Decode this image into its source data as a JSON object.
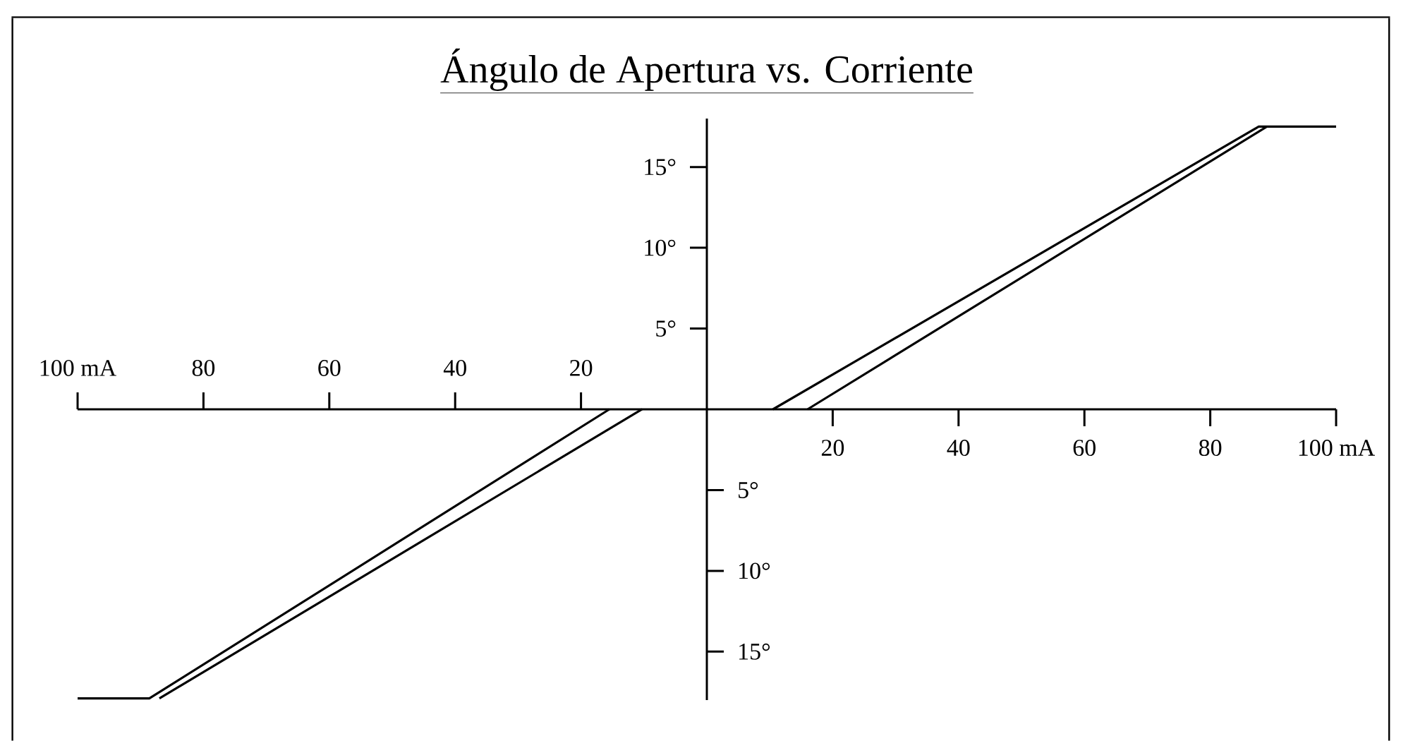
{
  "chart_data": {
    "type": "line",
    "title": "Ángulo de Apertura vs. Corriente",
    "xlim": [
      -100,
      100
    ],
    "ylim": [
      -18,
      18
    ],
    "xticks": [
      20,
      40,
      60,
      80,
      {
        "value": 100,
        "label": "100 mA"
      }
    ],
    "x2lim": [
      -100,
      100
    ],
    "x2ticks": [
      {
        "value": -100,
        "label": "100 mA"
      },
      {
        "value": -80,
        "label": "80"
      },
      {
        "value": -60,
        "label": "60"
      },
      {
        "value": -40,
        "label": "40"
      },
      {
        "value": -20,
        "label": "20"
      }
    ],
    "yticks": [
      {
        "value": 5,
        "label": "5°"
      },
      {
        "value": 10,
        "label": "10°"
      },
      {
        "value": 15,
        "label": "15°"
      }
    ],
    "y2lim": [
      -18,
      18
    ],
    "y2ticks": [
      {
        "value": -15,
        "label": "15°"
      },
      {
        "value": -10,
        "label": "10°"
      },
      {
        "value": -5,
        "label": "5°"
      }
    ],
    "series": [
      {
        "color": "#000000",
        "x": [
          -100,
          -88.6,
          -15.5
        ],
        "values": [
          -17.9,
          -17.9,
          0
        ]
      },
      {
        "color": "#000000",
        "x": [
          -87,
          -10.3
        ],
        "values": [
          -17.9,
          0
        ]
      },
      {
        "color": "#000000",
        "x": [
          10.5,
          87.7,
          100
        ],
        "values": [
          0,
          17.5,
          17.5
        ]
      },
      {
        "color": "#000000",
        "x": [
          16,
          89
        ],
        "values": [
          0,
          17.5
        ]
      }
    ],
    "marker": "none",
    "line_style": "solid"
  }
}
